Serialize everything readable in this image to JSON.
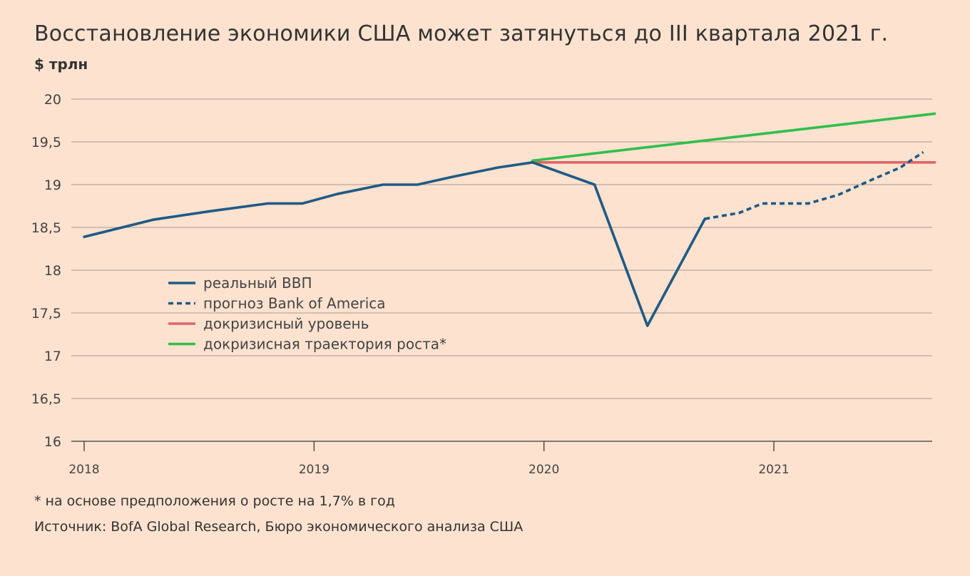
{
  "title": "Восстановление экономики США может затянуться до III квартала 2021 г.",
  "unit_label": "$ трлн",
  "footnote": "* на основе предположения о росте на 1,7% в год",
  "source": "Источник: BofA Global Research, Бюро экономического анализа США",
  "chart_data": {
    "type": "line",
    "ylim": [
      16,
      20
    ],
    "yticks": [
      {
        "value": 16,
        "label": "16"
      },
      {
        "value": 16.5,
        "label": "16,5"
      },
      {
        "value": 17,
        "label": "17"
      },
      {
        "value": 17.5,
        "label": "17,5"
      },
      {
        "value": 18,
        "label": "18"
      },
      {
        "value": 18.5,
        "label": "18,5"
      },
      {
        "value": 19,
        "label": "19"
      },
      {
        "value": 19.5,
        "label": "19,5"
      },
      {
        "value": 20,
        "label": "20"
      }
    ],
    "xlim": [
      2018,
      2021.7
    ],
    "xticks": [
      {
        "value": 2018,
        "label": "2018"
      },
      {
        "value": 2019,
        "label": "2019"
      },
      {
        "value": 2020,
        "label": "2020"
      },
      {
        "value": 2021,
        "label": "2021"
      }
    ],
    "grid": true,
    "legend_position": "center-left",
    "series": [
      {
        "name": "реальный ВВП",
        "color": "#1f5a85",
        "style": "solid",
        "points": [
          [
            2018.0,
            18.39
          ],
          [
            2018.3,
            18.59
          ],
          [
            2018.55,
            18.69
          ],
          [
            2018.8,
            18.78
          ],
          [
            2018.95,
            18.78
          ],
          [
            2019.1,
            18.89
          ],
          [
            2019.3,
            19.0
          ],
          [
            2019.45,
            19.0
          ],
          [
            2019.6,
            19.09
          ],
          [
            2019.8,
            19.2
          ],
          [
            2019.95,
            19.26
          ],
          [
            2020.22,
            19.0
          ],
          [
            2020.45,
            17.35
          ],
          [
            2020.7,
            18.6
          ]
        ]
      },
      {
        "name": "прогноз Bank of America",
        "color": "#1f5a85",
        "style": "dashed",
        "points": [
          [
            2020.7,
            18.6
          ],
          [
            2020.85,
            18.67
          ],
          [
            2020.95,
            18.78
          ],
          [
            2021.15,
            18.78
          ],
          [
            2021.28,
            18.88
          ],
          [
            2021.42,
            19.05
          ],
          [
            2021.55,
            19.2
          ],
          [
            2021.65,
            19.38
          ]
        ]
      },
      {
        "name": "докризисный уровень",
        "color": "#e06666",
        "style": "solid",
        "points": [
          [
            2019.95,
            19.26
          ],
          [
            2021.7,
            19.26
          ]
        ]
      },
      {
        "name": "докризисная траектория роста*",
        "color": "#2fbf4a",
        "style": "solid",
        "points": [
          [
            2019.95,
            19.28
          ],
          [
            2021.7,
            19.83
          ]
        ]
      }
    ]
  }
}
